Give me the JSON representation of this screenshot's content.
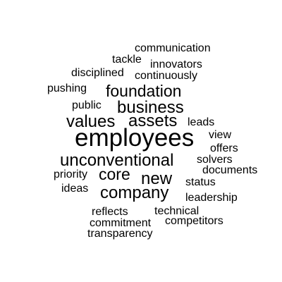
{
  "word_cloud": {
    "text_color": "#000000",
    "background": "#ffffff",
    "words": [
      {
        "text": "communication",
        "weight": 1
      },
      {
        "text": "tackle",
        "weight": 1
      },
      {
        "text": "innovators",
        "weight": 1
      },
      {
        "text": "disciplined",
        "weight": 1
      },
      {
        "text": "continuously",
        "weight": 1
      },
      {
        "text": "pushing",
        "weight": 1
      },
      {
        "text": "foundation",
        "weight": 2
      },
      {
        "text": "public",
        "weight": 1
      },
      {
        "text": "business",
        "weight": 2
      },
      {
        "text": "values",
        "weight": 2
      },
      {
        "text": "assets",
        "weight": 2
      },
      {
        "text": "leads",
        "weight": 1
      },
      {
        "text": "employees",
        "weight": 4
      },
      {
        "text": "view",
        "weight": 1
      },
      {
        "text": "offers",
        "weight": 1
      },
      {
        "text": "unconventional",
        "weight": 2
      },
      {
        "text": "solvers",
        "weight": 1
      },
      {
        "text": "documents",
        "weight": 1
      },
      {
        "text": "priority",
        "weight": 1
      },
      {
        "text": "core",
        "weight": 2
      },
      {
        "text": "new",
        "weight": 2
      },
      {
        "text": "status",
        "weight": 1
      },
      {
        "text": "ideas",
        "weight": 1
      },
      {
        "text": "company",
        "weight": 2
      },
      {
        "text": "leadership",
        "weight": 1
      },
      {
        "text": "reflects",
        "weight": 1
      },
      {
        "text": "technical",
        "weight": 1
      },
      {
        "text": "commitment",
        "weight": 1
      },
      {
        "text": "competitors",
        "weight": 1
      },
      {
        "text": "transparency",
        "weight": 1
      }
    ]
  }
}
